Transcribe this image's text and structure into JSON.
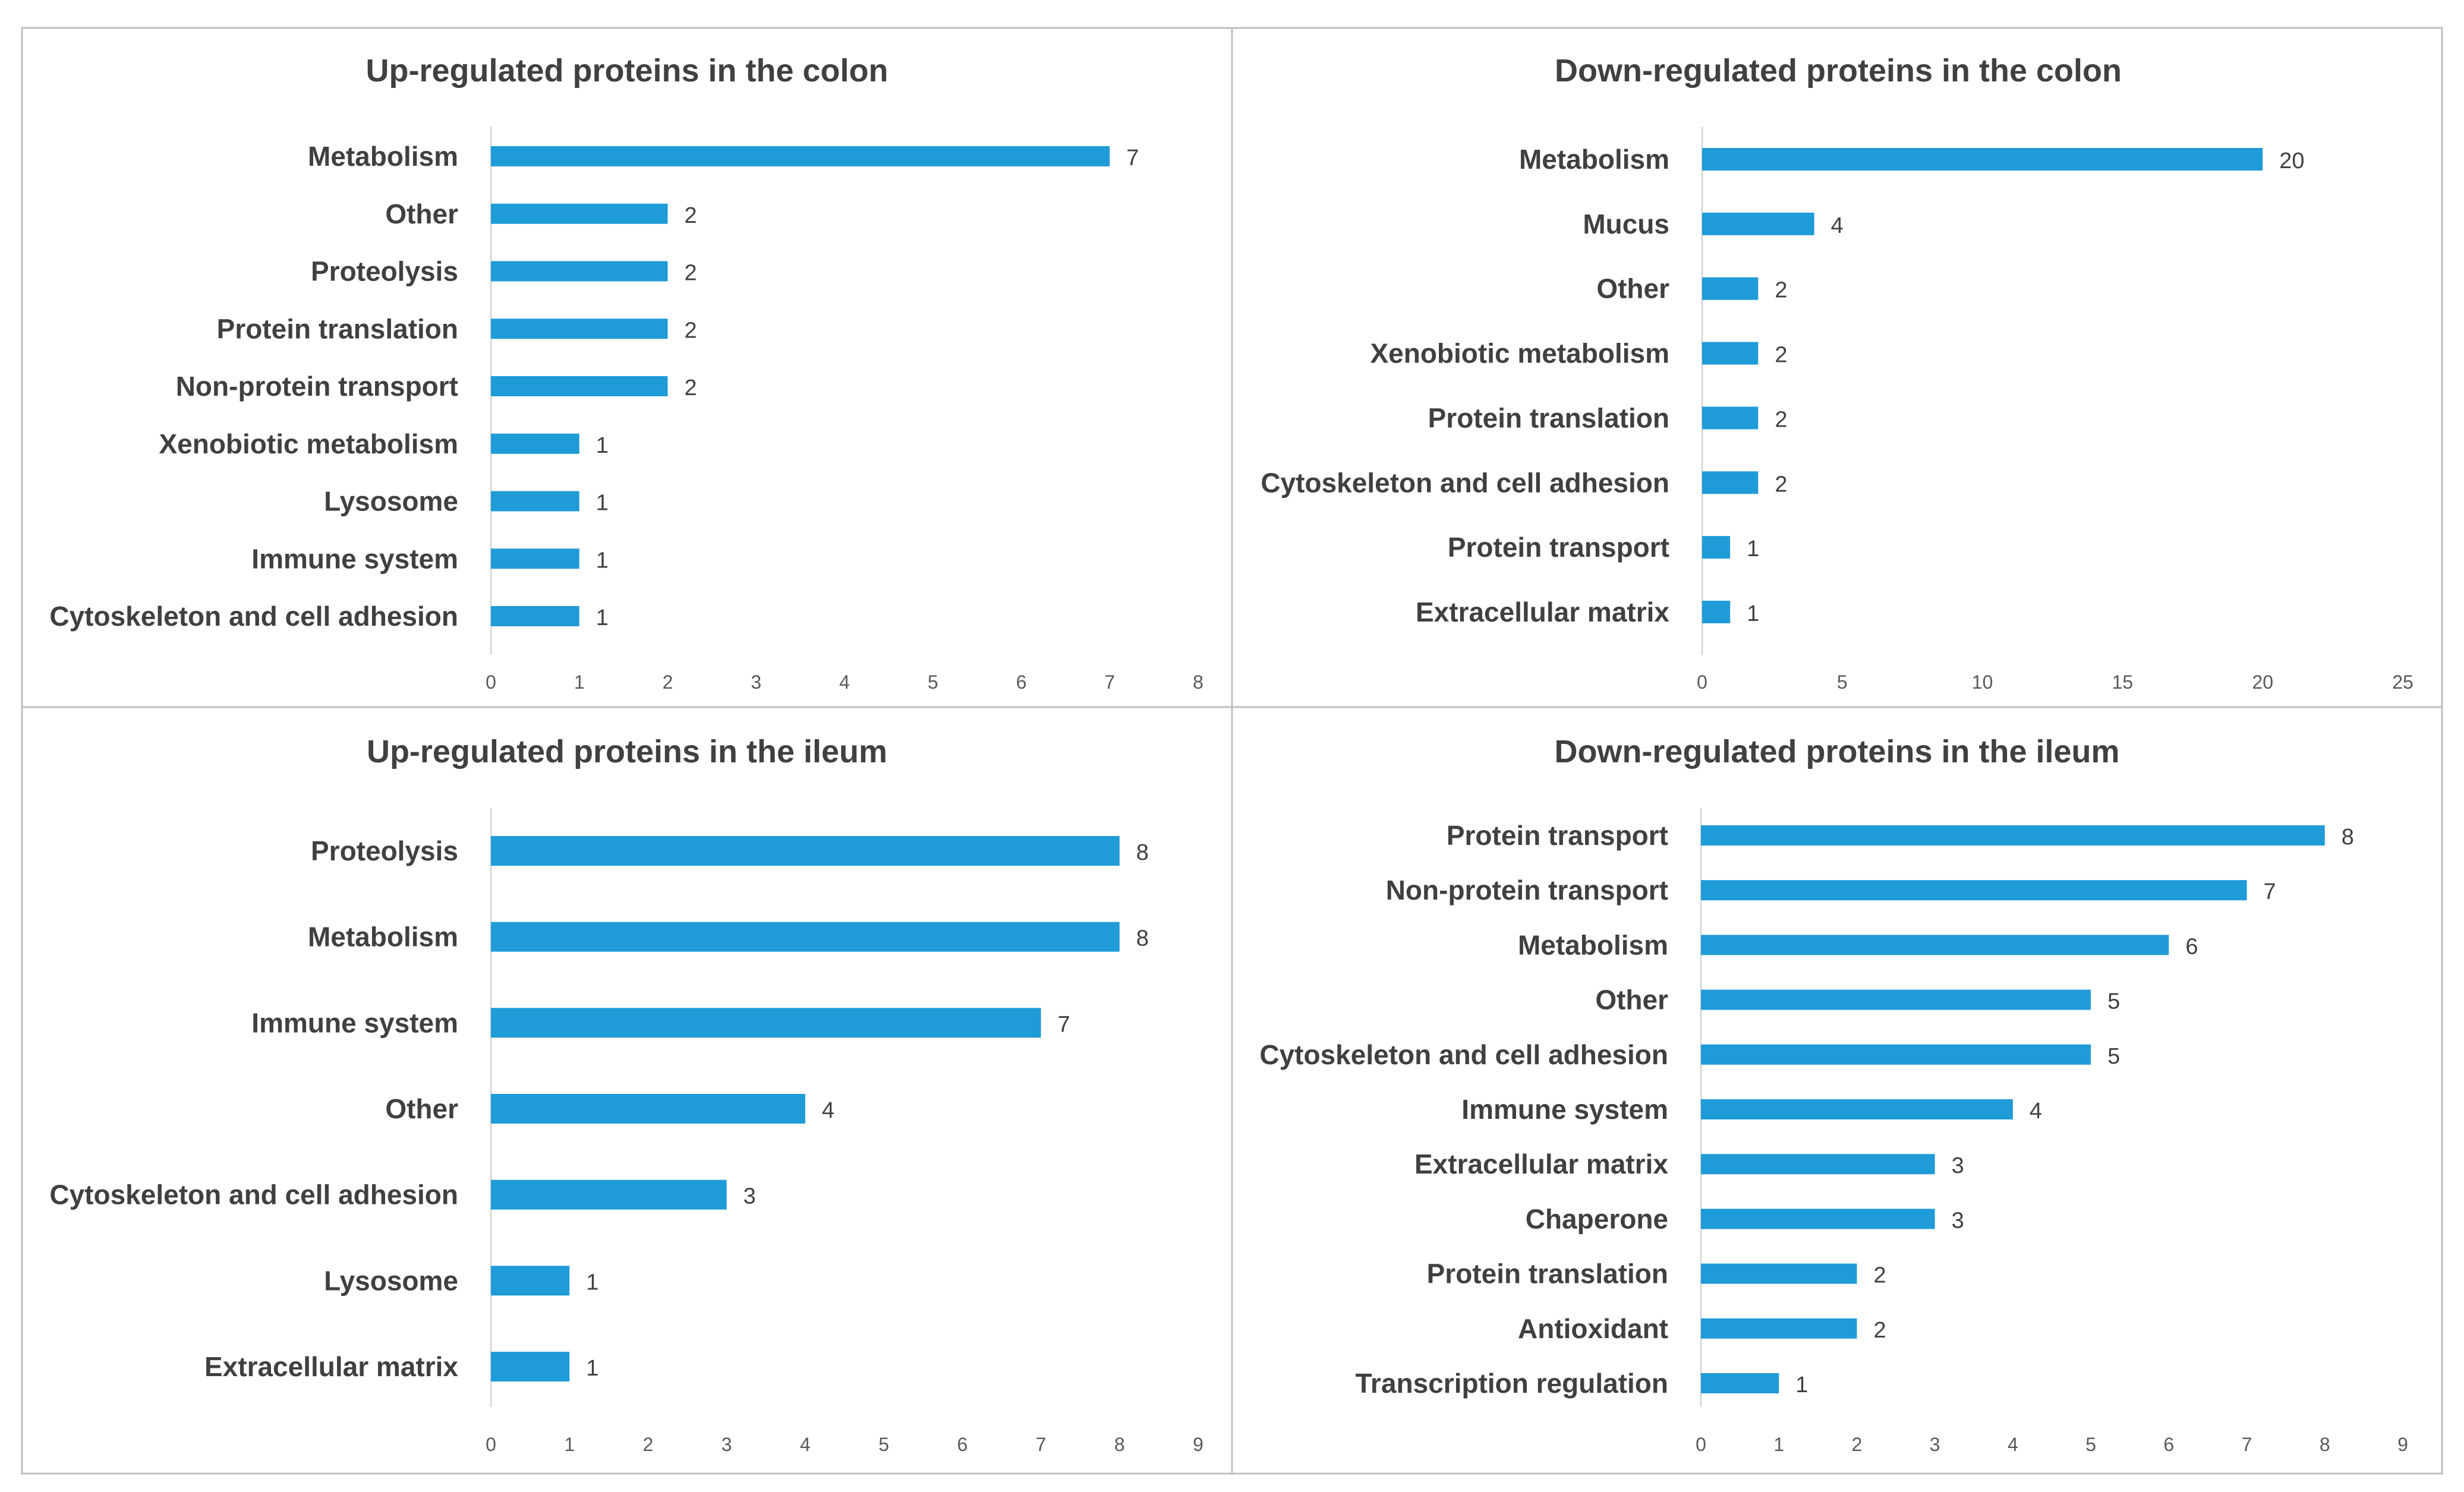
{
  "colors": {
    "bar": "#1f9bd7",
    "text": "#404040",
    "tick": "#595959",
    "border": "#bfbfbf",
    "axis": "#d9d9d9"
  },
  "chart_data": [
    {
      "type": "bar",
      "orientation": "horizontal",
      "title": "Up-regulated proteins in the colon",
      "categories": [
        "Metabolism",
        "Other",
        "Proteolysis",
        "Protein translation",
        "Non-protein transport",
        "Xenobiotic metabolism",
        "Lysosome",
        "Immune system",
        "Cytoskeleton and cell adhesion"
      ],
      "values": [
        7,
        2,
        2,
        2,
        2,
        1,
        1,
        1,
        1
      ],
      "xlim": [
        0,
        8
      ],
      "ticks": [
        0,
        1,
        2,
        3,
        4,
        5,
        6,
        7,
        8
      ],
      "xlabel": "",
      "ylabel": "",
      "grid": false,
      "legend": "none"
    },
    {
      "type": "bar",
      "orientation": "horizontal",
      "title": "Down-regulated proteins in the colon",
      "categories": [
        "Metabolism",
        "Mucus",
        "Other",
        "Xenobiotic metabolism",
        "Protein translation",
        "Cytoskeleton and cell adhesion",
        "Protein transport",
        "Extracellular matrix"
      ],
      "values": [
        20,
        4,
        2,
        2,
        2,
        2,
        1,
        1
      ],
      "xlim": [
        0,
        25
      ],
      "ticks": [
        0,
        5,
        10,
        15,
        20,
        25
      ],
      "xlabel": "",
      "ylabel": "",
      "grid": false,
      "legend": "none"
    },
    {
      "type": "bar",
      "orientation": "horizontal",
      "title": "Up-regulated proteins in the ileum",
      "categories": [
        "Proteolysis",
        "Metabolism",
        "Immune system",
        "Other",
        "Cytoskeleton and cell adhesion",
        "Lysosome",
        "Extracellular matrix"
      ],
      "values": [
        8,
        8,
        7,
        4,
        3,
        1,
        1
      ],
      "xlim": [
        0,
        9
      ],
      "ticks": [
        0,
        1,
        2,
        3,
        4,
        5,
        6,
        7,
        8,
        9
      ],
      "xlabel": "",
      "ylabel": "",
      "grid": false,
      "legend": "none"
    },
    {
      "type": "bar",
      "orientation": "horizontal",
      "title": "Down-regulated proteins in the ileum",
      "categories": [
        "Protein transport",
        "Non-protein transport",
        "Metabolism",
        "Other",
        "Cytoskeleton and cell adhesion",
        "Immune system",
        "Extracellular matrix",
        "Chaperone",
        "Protein translation",
        "Antioxidant",
        "Transcription regulation"
      ],
      "values": [
        8,
        7,
        6,
        5,
        5,
        4,
        3,
        3,
        2,
        2,
        1
      ],
      "xlim": [
        0,
        9
      ],
      "ticks": [
        0,
        1,
        2,
        3,
        4,
        5,
        6,
        7,
        8,
        9
      ],
      "xlabel": "",
      "ylabel": "",
      "grid": false,
      "legend": "none"
    }
  ]
}
